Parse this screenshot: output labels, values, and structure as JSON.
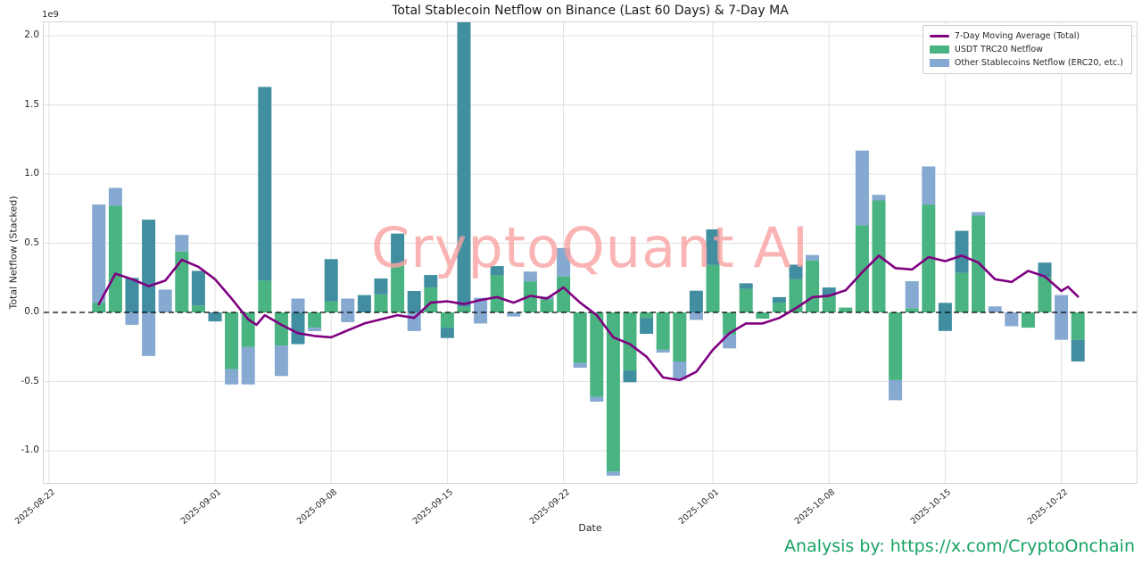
{
  "title": "Total Stablecoin Netflow on Binance (Last 60 Days) & 7-Day MA",
  "watermark": "CryptoQuant AI",
  "attribution": "Analysis by: https://x.com/CryptoOnchain",
  "axes": {
    "x_label": "Date",
    "y_label": "Total Netflow (Stacked)",
    "offset_text": "1e9",
    "y_ticks": [
      {
        "value": 2.0,
        "label": "2.0"
      },
      {
        "value": 1.5,
        "label": "1.5"
      },
      {
        "value": 1.0,
        "label": "1.0"
      },
      {
        "value": 0.5,
        "label": "0.5"
      },
      {
        "value": 0.0,
        "label": "0.0"
      },
      {
        "value": -0.5,
        "label": "-0.5"
      },
      {
        "value": -1.0,
        "label": "-1.0"
      }
    ],
    "x_ticks": [
      {
        "day": 0,
        "label": "2025-08-22"
      },
      {
        "day": 10,
        "label": "2025-09-01"
      },
      {
        "day": 17,
        "label": "2025-09-08"
      },
      {
        "day": 24,
        "label": "2025-09-15"
      },
      {
        "day": 31,
        "label": "2025-09-22"
      },
      {
        "day": 40,
        "label": "2025-10-01"
      },
      {
        "day": 47,
        "label": "2025-10-08"
      },
      {
        "day": 54,
        "label": "2025-10-15"
      },
      {
        "day": 61,
        "label": "2025-10-22"
      }
    ]
  },
  "legend": {
    "items": [
      {
        "label": "7-Day Moving Average (Total)",
        "type": "line",
        "color_key": "ma"
      },
      {
        "label": "USDT TRC20 Netflow",
        "type": "patch",
        "color_key": "green"
      },
      {
        "label": "Other Stablecoins Netflow (ERC20, etc.)",
        "type": "patch",
        "color_key": "blue"
      }
    ]
  },
  "colors": {
    "green": "#49b381",
    "blue": "#85a9d0",
    "teal": "#408ea0",
    "ma": "#800080",
    "grid": "#e1e1e1",
    "zero_line": "#000000",
    "watermark": "#f9a2a2",
    "attribution": "#17a362",
    "text": "#262626"
  },
  "chart_data": {
    "type": "bar",
    "stacked": true,
    "units": "billions of USD (1e9)",
    "ylim": [
      -1.23,
      2.1
    ],
    "grid": true,
    "legend_position": "upper right",
    "segment_format": "[color(g=USDT TRC20 green, b=Other Stablecoins blue, t=overlap teal), from_value, to_value] in 1e9",
    "bars": [
      {
        "date": "2025-08-25",
        "seg": [
          [
            "g",
            0,
            0.07
          ],
          [
            "b",
            0.07,
            0.78
          ]
        ]
      },
      {
        "date": "2025-08-26",
        "seg": [
          [
            "g",
            0,
            0.77
          ],
          [
            "b",
            0.77,
            0.9
          ]
        ]
      },
      {
        "date": "2025-08-27",
        "seg": [
          [
            "t",
            0,
            0.25
          ],
          [
            "b",
            0,
            -0.09
          ]
        ]
      },
      {
        "date": "2025-08-28",
        "seg": [
          [
            "t",
            0,
            0.67
          ],
          [
            "b",
            0,
            -0.315
          ]
        ]
      },
      {
        "date": "2025-08-29",
        "seg": [
          [
            "b",
            0,
            0.165
          ]
        ]
      },
      {
        "date": "2025-08-30",
        "seg": [
          [
            "g",
            0,
            0.44
          ],
          [
            "b",
            0.44,
            0.56
          ]
        ]
      },
      {
        "date": "2025-08-31",
        "seg": [
          [
            "g",
            0,
            0.05
          ],
          [
            "t",
            0.05,
            0.3
          ]
        ]
      },
      {
        "date": "2025-09-01",
        "seg": [
          [
            "t",
            0,
            -0.065
          ]
        ]
      },
      {
        "date": "2025-09-02",
        "seg": [
          [
            "g",
            0,
            -0.41
          ],
          [
            "b",
            -0.41,
            -0.52
          ]
        ]
      },
      {
        "date": "2025-09-03",
        "seg": [
          [
            "g",
            0,
            -0.25
          ],
          [
            "b",
            -0.25,
            -0.52
          ]
        ]
      },
      {
        "date": "2025-09-04",
        "seg": [
          [
            "g",
            0,
            0.23
          ],
          [
            "t",
            0.23,
            1.63
          ]
        ]
      },
      {
        "date": "2025-09-05",
        "seg": [
          [
            "g",
            0,
            -0.24
          ],
          [
            "b",
            -0.24,
            -0.46
          ]
        ]
      },
      {
        "date": "2025-09-06",
        "seg": [
          [
            "b",
            0,
            0.1
          ],
          [
            "t",
            0,
            -0.23
          ]
        ]
      },
      {
        "date": "2025-09-07",
        "seg": [
          [
            "g",
            0,
            -0.11
          ],
          [
            "b",
            -0.11,
            -0.135
          ]
        ]
      },
      {
        "date": "2025-09-08",
        "seg": [
          [
            "g",
            0,
            0.08
          ],
          [
            "t",
            0.08,
            0.385
          ]
        ]
      },
      {
        "date": "2025-09-09",
        "seg": [
          [
            "b",
            0,
            0.1
          ],
          [
            "b",
            0,
            -0.07
          ]
        ]
      },
      {
        "date": "2025-09-10",
        "seg": [
          [
            "t",
            0,
            0.125
          ]
        ]
      },
      {
        "date": "2025-09-11",
        "seg": [
          [
            "g",
            0,
            0.13
          ],
          [
            "t",
            0.13,
            0.245
          ]
        ]
      },
      {
        "date": "2025-09-12",
        "seg": [
          [
            "g",
            0,
            0.35
          ],
          [
            "t",
            0.35,
            0.57
          ]
        ]
      },
      {
        "date": "2025-09-13",
        "seg": [
          [
            "t",
            0,
            0.155
          ],
          [
            "b",
            0,
            -0.135
          ]
        ]
      },
      {
        "date": "2025-09-14",
        "seg": [
          [
            "g",
            0,
            0.18
          ],
          [
            "t",
            0.18,
            0.27
          ]
        ]
      },
      {
        "date": "2025-09-15",
        "seg": [
          [
            "g",
            0,
            -0.11
          ],
          [
            "t",
            -0.11,
            -0.185
          ]
        ]
      },
      {
        "date": "2025-09-16",
        "seg": [
          [
            "g",
            0,
            0.04
          ],
          [
            "t",
            0.04,
            2.12
          ]
        ]
      },
      {
        "date": "2025-09-17",
        "seg": [
          [
            "b",
            0,
            0.105
          ],
          [
            "b",
            0,
            -0.08
          ]
        ]
      },
      {
        "date": "2025-09-18",
        "seg": [
          [
            "g",
            0,
            0.27
          ],
          [
            "t",
            0.27,
            0.335
          ]
        ]
      },
      {
        "date": "2025-09-19",
        "seg": [
          [
            "b",
            0,
            -0.03
          ]
        ]
      },
      {
        "date": "2025-09-20",
        "seg": [
          [
            "g",
            0,
            0.225
          ],
          [
            "b",
            0.225,
            0.295
          ]
        ]
      },
      {
        "date": "2025-09-21",
        "seg": [
          [
            "g",
            0,
            0.095
          ],
          [
            "b",
            0.095,
            0.115
          ]
        ]
      },
      {
        "date": "2025-09-22",
        "seg": [
          [
            "g",
            0,
            0.26
          ],
          [
            "b",
            0.26,
            0.465
          ]
        ]
      },
      {
        "date": "2025-09-23",
        "seg": [
          [
            "g",
            0,
            -0.365
          ],
          [
            "b",
            -0.365,
            -0.4
          ]
        ]
      },
      {
        "date": "2025-09-24",
        "seg": [
          [
            "g",
            0,
            -0.61
          ],
          [
            "b",
            -0.61,
            -0.645
          ]
        ]
      },
      {
        "date": "2025-09-25",
        "seg": [
          [
            "g",
            0,
            -1.15
          ],
          [
            "b",
            -1.15,
            -1.18
          ]
        ]
      },
      {
        "date": "2025-09-26",
        "seg": [
          [
            "g",
            0,
            -0.42
          ],
          [
            "t",
            -0.42,
            -0.505
          ]
        ]
      },
      {
        "date": "2025-09-27",
        "seg": [
          [
            "g",
            0,
            -0.04
          ],
          [
            "t",
            -0.04,
            -0.155
          ]
        ]
      },
      {
        "date": "2025-09-28",
        "seg": [
          [
            "g",
            0,
            -0.27
          ],
          [
            "b",
            -0.27,
            -0.29
          ]
        ]
      },
      {
        "date": "2025-09-29",
        "seg": [
          [
            "g",
            0,
            -0.355
          ],
          [
            "b",
            -0.355,
            -0.485
          ]
        ]
      },
      {
        "date": "2025-09-30",
        "seg": [
          [
            "t",
            0,
            0.157
          ],
          [
            "b",
            0,
            -0.054
          ]
        ]
      },
      {
        "date": "2025-10-01",
        "seg": [
          [
            "g",
            0,
            0.344
          ],
          [
            "t",
            0.344,
            0.6
          ]
        ]
      },
      {
        "date": "2025-10-02",
        "seg": [
          [
            "g",
            0,
            -0.16
          ],
          [
            "b",
            -0.16,
            -0.26
          ]
        ]
      },
      {
        "date": "2025-10-03",
        "seg": [
          [
            "g",
            0,
            0.17
          ],
          [
            "t",
            0.17,
            0.21
          ]
        ]
      },
      {
        "date": "2025-10-04",
        "seg": [
          [
            "g",
            0,
            -0.045
          ]
        ]
      },
      {
        "date": "2025-10-05",
        "seg": [
          [
            "g",
            0,
            0.07
          ],
          [
            "t",
            0.07,
            0.11
          ]
        ]
      },
      {
        "date": "2025-10-06",
        "seg": [
          [
            "g",
            0,
            0.24
          ],
          [
            "t",
            0.24,
            0.345
          ]
        ]
      },
      {
        "date": "2025-10-07",
        "seg": [
          [
            "g",
            0,
            0.376
          ],
          [
            "b",
            0.376,
            0.415
          ]
        ]
      },
      {
        "date": "2025-10-08",
        "seg": [
          [
            "g",
            0,
            0.12
          ],
          [
            "t",
            0.12,
            0.18
          ]
        ]
      },
      {
        "date": "2025-10-09",
        "seg": [
          [
            "g",
            0,
            0.035
          ]
        ]
      },
      {
        "date": "2025-10-10",
        "seg": [
          [
            "g",
            0,
            0.63
          ],
          [
            "b",
            0.63,
            1.17
          ]
        ]
      },
      {
        "date": "2025-10-11",
        "seg": [
          [
            "g",
            0,
            0.81
          ],
          [
            "b",
            0.81,
            0.85
          ]
        ]
      },
      {
        "date": "2025-10-12",
        "seg": [
          [
            "g",
            0,
            -0.49
          ],
          [
            "b",
            -0.49,
            -0.635
          ]
        ]
      },
      {
        "date": "2025-10-13",
        "seg": [
          [
            "g",
            0,
            0.03
          ],
          [
            "b",
            0.03,
            0.225
          ]
        ]
      },
      {
        "date": "2025-10-14",
        "seg": [
          [
            "g",
            0,
            0.78
          ],
          [
            "b",
            0.78,
            1.055
          ]
        ]
      },
      {
        "date": "2025-10-15",
        "seg": [
          [
            "t",
            -0.134,
            0.069
          ]
        ]
      },
      {
        "date": "2025-10-16",
        "seg": [
          [
            "g",
            0,
            0.286
          ],
          [
            "t",
            0.286,
            0.59
          ]
        ]
      },
      {
        "date": "2025-10-17",
        "seg": [
          [
            "g",
            0,
            0.7
          ],
          [
            "b",
            0.7,
            0.725
          ]
        ]
      },
      {
        "date": "2025-10-18",
        "seg": [
          [
            "b",
            0,
            0.043
          ]
        ]
      },
      {
        "date": "2025-10-19",
        "seg": [
          [
            "b",
            0,
            -0.1
          ]
        ]
      },
      {
        "date": "2025-10-20",
        "seg": [
          [
            "g",
            0,
            -0.11
          ]
        ]
      },
      {
        "date": "2025-10-21",
        "seg": [
          [
            "g",
            0,
            0.254
          ],
          [
            "t",
            0.254,
            0.36
          ]
        ]
      },
      {
        "date": "2025-10-22",
        "seg": [
          [
            "b",
            -0.198,
            0.125
          ]
        ]
      },
      {
        "date": "2025-10-23",
        "seg": [
          [
            "g",
            0,
            -0.198
          ],
          [
            "t",
            -0.198,
            -0.355
          ]
        ]
      }
    ],
    "ma_line": {
      "name": "7-Day Moving Average (Total)",
      "point_format": "[bar_index, value_in_1e9]",
      "points": [
        [
          0,
          0.06
        ],
        [
          1,
          0.28
        ],
        [
          2,
          0.24
        ],
        [
          3,
          0.19
        ],
        [
          4,
          0.23
        ],
        [
          5,
          0.38
        ],
        [
          6,
          0.33
        ],
        [
          7,
          0.24
        ],
        [
          8,
          0.1
        ],
        [
          9,
          -0.05
        ],
        [
          9.5,
          -0.09
        ],
        [
          10,
          -0.02
        ],
        [
          11,
          -0.09
        ],
        [
          12,
          -0.15
        ],
        [
          13,
          -0.17
        ],
        [
          14,
          -0.18
        ],
        [
          15,
          -0.13
        ],
        [
          16,
          -0.08
        ],
        [
          17,
          -0.05
        ],
        [
          18,
          -0.02
        ],
        [
          19,
          -0.04
        ],
        [
          20,
          0.07
        ],
        [
          21,
          0.08
        ],
        [
          22,
          0.06
        ],
        [
          23,
          0.09
        ],
        [
          24,
          0.11
        ],
        [
          25,
          0.07
        ],
        [
          26,
          0.12
        ],
        [
          27,
          0.1
        ],
        [
          28,
          0.18
        ],
        [
          29,
          0.07
        ],
        [
          30,
          -0.02
        ],
        [
          31,
          -0.18
        ],
        [
          32,
          -0.23
        ],
        [
          33,
          -0.32
        ],
        [
          34,
          -0.47
        ],
        [
          35,
          -0.49
        ],
        [
          36,
          -0.43
        ],
        [
          37,
          -0.27
        ],
        [
          38,
          -0.15
        ],
        [
          39,
          -0.08
        ],
        [
          40,
          -0.08
        ],
        [
          41,
          -0.04
        ],
        [
          42,
          0.03
        ],
        [
          43,
          0.11
        ],
        [
          44,
          0.12
        ],
        [
          45,
          0.16
        ],
        [
          46,
          0.29
        ],
        [
          47,
          0.41
        ],
        [
          48,
          0.32
        ],
        [
          49,
          0.31
        ],
        [
          50,
          0.4
        ],
        [
          51,
          0.37
        ],
        [
          52,
          0.41
        ],
        [
          53,
          0.36
        ],
        [
          54,
          0.24
        ],
        [
          55,
          0.22
        ],
        [
          56,
          0.3
        ],
        [
          57,
          0.26
        ],
        [
          58,
          0.155
        ],
        [
          58.4,
          0.185
        ],
        [
          59,
          0.115
        ]
      ]
    }
  }
}
